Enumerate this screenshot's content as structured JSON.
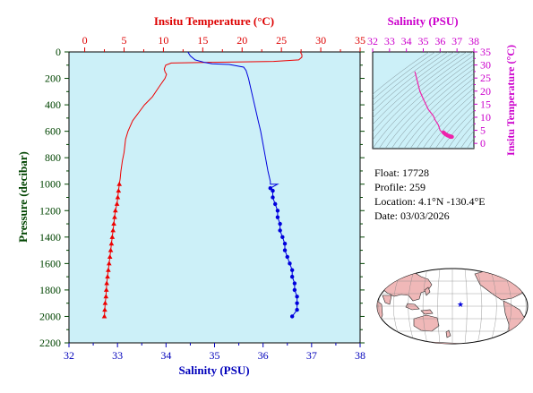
{
  "chart_data": [
    {
      "type": "line",
      "title": "",
      "top_axis": {
        "label": "Insitu Temperature (°C)",
        "ticks": [
          "0",
          "5",
          "10",
          "15",
          "20",
          "25",
          "30",
          "35"
        ],
        "range": [
          -2,
          35
        ],
        "color": "#dd0000"
      },
      "bottom_axis": {
        "label": "Salinity (PSU)",
        "ticks": [
          "32",
          "33",
          "34",
          "35",
          "36",
          "37",
          "38"
        ],
        "range": [
          32,
          38
        ],
        "color": "#0000bb"
      },
      "left_axis": {
        "label": "Pressure (decibar)",
        "ticks": [
          "0",
          "200",
          "400",
          "600",
          "800",
          "1000",
          "1200",
          "1400",
          "1600",
          "1800",
          "2000",
          "2200"
        ],
        "range": [
          0,
          2200
        ],
        "inverted": true,
        "color": "#004400"
      },
      "plot_background": "#ccf0f8",
      "series": [
        {
          "kind": "temperature",
          "color": "#ee0000",
          "marker": "triangle",
          "points": [
            [
              27.4,
              0
            ],
            [
              27.6,
              20
            ],
            [
              27.6,
              40
            ],
            [
              27.2,
              60
            ],
            [
              24,
              72
            ],
            [
              17,
              78
            ],
            [
              11,
              84
            ],
            [
              10.3,
              100
            ],
            [
              10.1,
              130
            ],
            [
              10.2,
              150
            ],
            [
              10.4,
              170
            ],
            [
              10.2,
              200
            ],
            [
              9.5,
              260
            ],
            [
              8.6,
              340
            ],
            [
              7.6,
              400
            ],
            [
              7.1,
              440
            ],
            [
              6.6,
              480
            ],
            [
              6.1,
              520
            ],
            [
              5.5,
              600
            ],
            [
              5.2,
              660
            ],
            [
              5,
              760
            ],
            [
              4.8,
              820
            ],
            [
              4.6,
              900
            ],
            [
              4.5,
              960
            ],
            [
              4.4,
              1000
            ]
          ],
          "marked_points": [
            [
              4.4,
              1000
            ],
            [
              4.3,
              1050
            ],
            [
              4.2,
              1100
            ],
            [
              4.1,
              1150
            ],
            [
              3.9,
              1200
            ],
            [
              3.8,
              1250
            ],
            [
              3.7,
              1300
            ],
            [
              3.6,
              1350
            ],
            [
              3.5,
              1400
            ],
            [
              3.4,
              1450
            ],
            [
              3.3,
              1500
            ],
            [
              3.2,
              1550
            ],
            [
              3.1,
              1600
            ],
            [
              3,
              1650
            ],
            [
              2.9,
              1700
            ],
            [
              2.8,
              1750
            ],
            [
              2.75,
              1800
            ],
            [
              2.7,
              1850
            ],
            [
              2.6,
              1900
            ],
            [
              2.55,
              1950
            ],
            [
              2.5,
              2000
            ]
          ]
        },
        {
          "kind": "salinity",
          "color": "#0000dd",
          "marker": "circle",
          "points": [
            [
              34.45,
              0
            ],
            [
              34.5,
              30
            ],
            [
              34.6,
              60
            ],
            [
              34.8,
              80
            ],
            [
              34.95,
              90
            ],
            [
              35.3,
              95
            ],
            [
              35.6,
              115
            ],
            [
              35.65,
              140
            ],
            [
              35.7,
              200
            ],
            [
              35.75,
              280
            ],
            [
              35.8,
              360
            ],
            [
              35.85,
              440
            ],
            [
              35.9,
              520
            ],
            [
              35.95,
              600
            ],
            [
              36,
              700
            ],
            [
              36.05,
              800
            ],
            [
              36.1,
              900
            ],
            [
              36.15,
              980
            ],
            [
              36.15,
              1000
            ],
            [
              36.3,
              1000
            ],
            [
              36.15,
              1030
            ]
          ],
          "marked_points": [
            [
              36.15,
              1030
            ],
            [
              36.2,
              1050
            ],
            [
              36.2,
              1100
            ],
            [
              36.25,
              1150
            ],
            [
              36.3,
              1200
            ],
            [
              36.3,
              1250
            ],
            [
              36.35,
              1300
            ],
            [
              36.35,
              1350
            ],
            [
              36.4,
              1400
            ],
            [
              36.45,
              1450
            ],
            [
              36.45,
              1500
            ],
            [
              36.5,
              1550
            ],
            [
              36.55,
              1600
            ],
            [
              36.6,
              1650
            ],
            [
              36.6,
              1700
            ],
            [
              36.65,
              1750
            ],
            [
              36.65,
              1800
            ],
            [
              36.7,
              1850
            ],
            [
              36.7,
              1900
            ],
            [
              36.7,
              1950
            ],
            [
              36.6,
              2000
            ]
          ]
        }
      ]
    },
    {
      "type": "scatter",
      "title": "",
      "top_axis": {
        "label": "Salinity (PSU)",
        "ticks": [
          "32",
          "33",
          "34",
          "35",
          "36",
          "37",
          "38"
        ],
        "range": [
          32,
          38
        ],
        "color": "#cc00cc"
      },
      "right_axis": {
        "label": "Insitu Temperature (°C)",
        "ticks": [
          "0",
          "5",
          "10",
          "15",
          "20",
          "25",
          "30",
          "35"
        ],
        "range": [
          -2,
          35
        ],
        "color": "#cc00cc"
      },
      "plot_background": "#ccf0f8",
      "series": [
        {
          "kind": "ts",
          "color": "#ee22aa",
          "points": [
            [
              34.5,
              27.5
            ],
            [
              34.6,
              25
            ],
            [
              34.8,
              20
            ],
            [
              35.0,
              17
            ],
            [
              35.3,
              13
            ],
            [
              35.6,
              10.5
            ],
            [
              35.7,
              9
            ],
            [
              35.9,
              7
            ],
            [
              36.0,
              5
            ],
            [
              36.1,
              4.4
            ]
          ],
          "heavy_points": [
            [
              36.2,
              4.2
            ],
            [
              36.25,
              3.9
            ],
            [
              36.3,
              3.6
            ],
            [
              36.35,
              3.4
            ],
            [
              36.4,
              3.2
            ],
            [
              36.45,
              3.0
            ],
            [
              36.5,
              2.9
            ],
            [
              36.55,
              2.8
            ],
            [
              36.6,
              2.7
            ],
            [
              36.65,
              2.6
            ],
            [
              36.7,
              2.5
            ],
            [
              36.6,
              2.5
            ]
          ]
        }
      ]
    }
  ],
  "info": {
    "float_line": "Float:  17728",
    "profile_line": "Profile:  259",
    "location_line": "Location:  4.1°N  -130.4°E",
    "date_line": "Date:  03/03/2026"
  },
  "map": {
    "ocean_color": "#ffffff",
    "land_color": "#f0b8b8",
    "marker_color": "#0000dd",
    "marker_position": {
      "lat": 4.1,
      "lon": -130.4
    }
  }
}
